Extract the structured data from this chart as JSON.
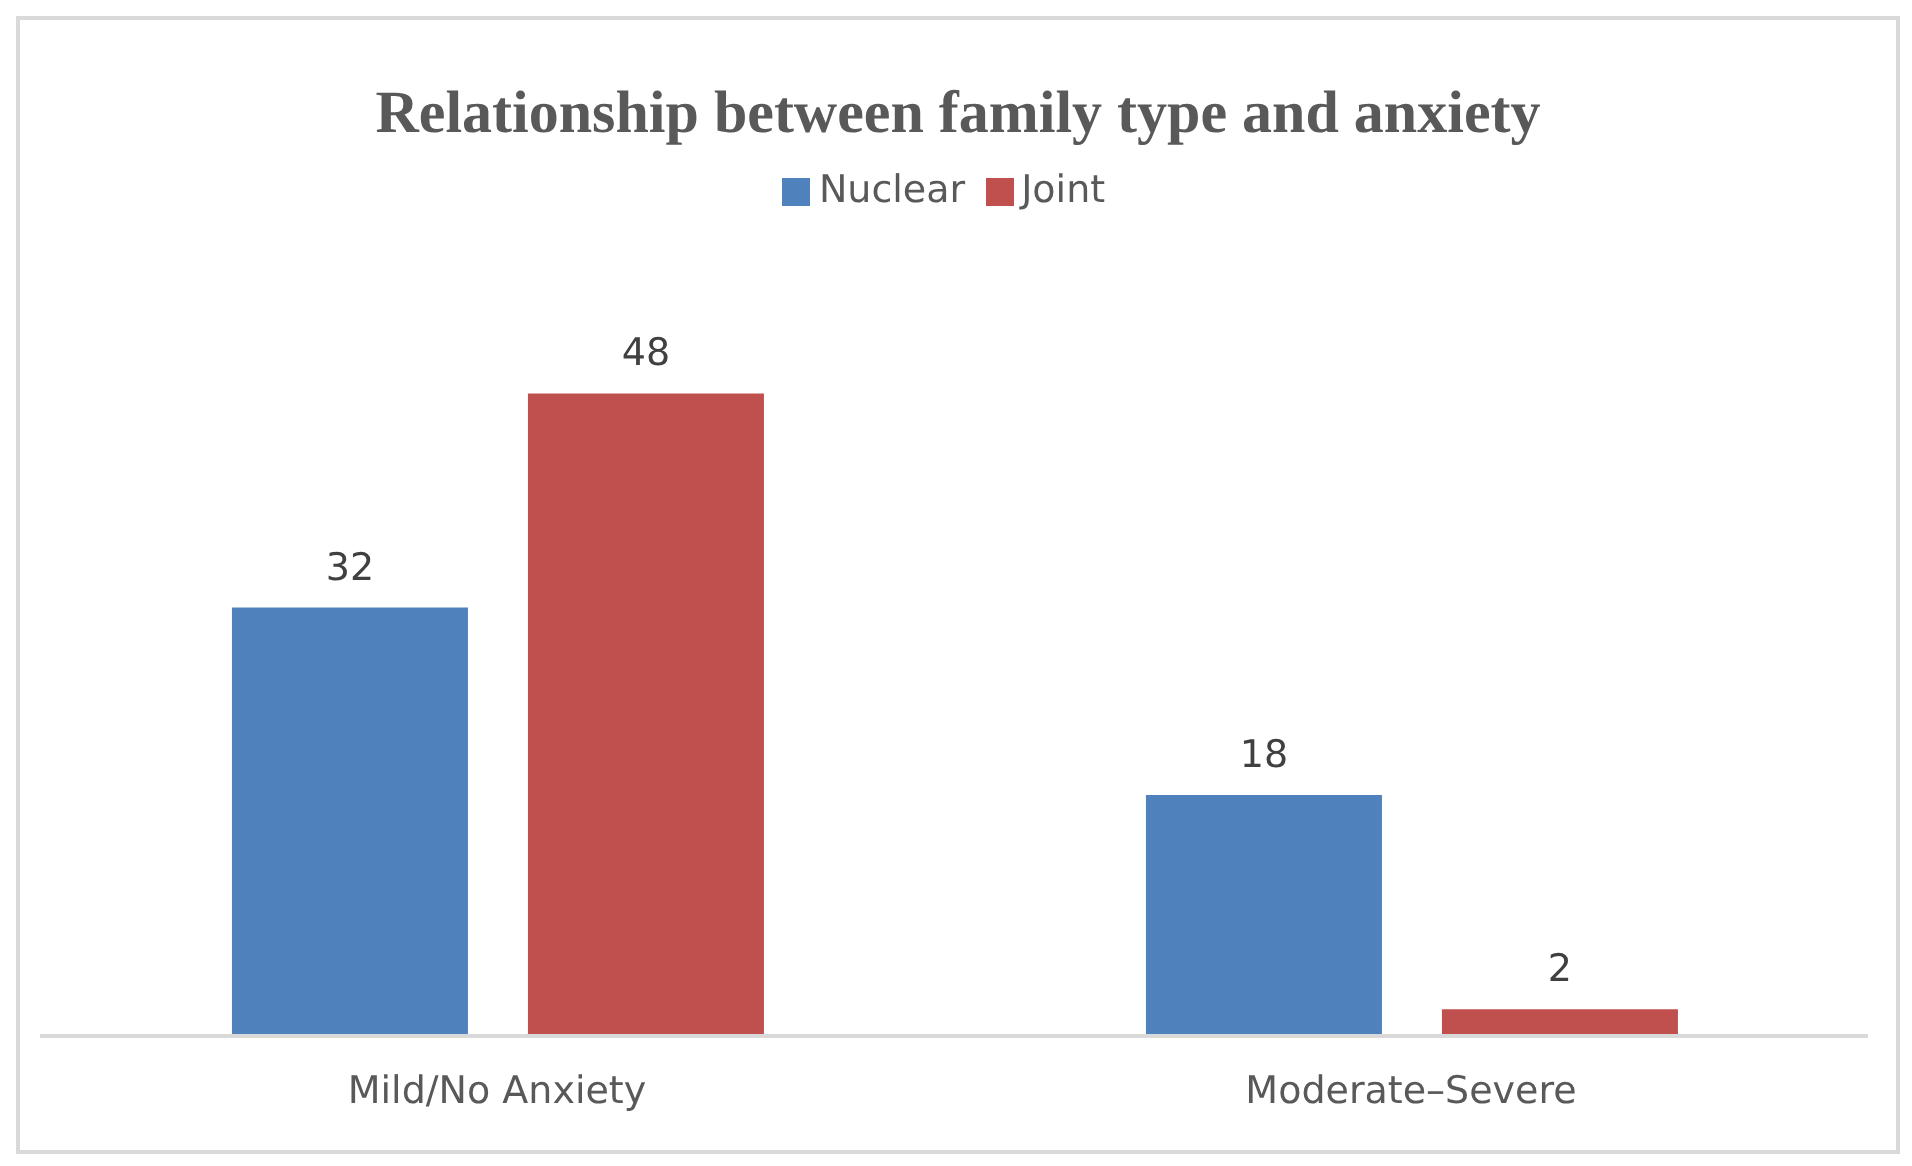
{
  "chart_data": {
    "type": "bar",
    "title": "Relationship between family type and anxiety",
    "categories": [
      "Mild/No Anxiety",
      "Moderate–Severe"
    ],
    "series": [
      {
        "name": "Nuclear",
        "color": "#4f81bd",
        "values": [
          32,
          18
        ]
      },
      {
        "name": "Joint",
        "color": "#c0504d",
        "values": [
          48,
          2
        ]
      }
    ],
    "data_labels": true,
    "legend": "top",
    "grid": false
  }
}
